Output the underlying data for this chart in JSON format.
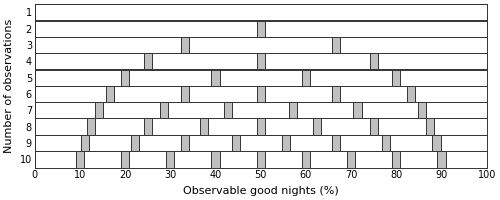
{
  "n_values": [
    1,
    2,
    3,
    4,
    5,
    6,
    7,
    8,
    9,
    10
  ],
  "xlabel": "Observable good nights (%)",
  "ylabel": "Number of observations",
  "xlim": [
    0,
    100
  ],
  "xticks": [
    0,
    10,
    20,
    30,
    40,
    50,
    60,
    70,
    80,
    90,
    100
  ],
  "tick_bar_width": 1.8,
  "tick_fill": "#c0c0c0",
  "tick_edge": "#333333",
  "row_edge": "#333333",
  "xlabel_fontsize": 8,
  "ylabel_fontsize": 8,
  "tick_label_fontsize": 7
}
